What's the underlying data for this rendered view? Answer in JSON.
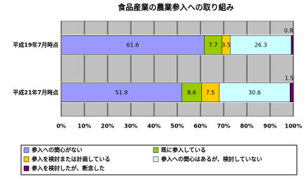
{
  "chart_data": {
    "type": "stacked-bar-horizontal",
    "title": "食品産業の農業参入への取り組み",
    "categories": [
      "平成19年7月時点",
      "平成21年7月時点"
    ],
    "series": [
      {
        "name": "参入への関心がない",
        "color": "#9999ff",
        "values": [
          61.6,
          51.9
        ]
      },
      {
        "name": "既に参入している",
        "color": "#99cc00",
        "values": [
          7.7,
          8.6
        ]
      },
      {
        "name": "参入を検討または計画している",
        "color": "#ffcc00",
        "values": [
          3.5,
          7.5
        ]
      },
      {
        "name": "参入への関心はあるが、検討していない",
        "color": "#ccffff",
        "values": [
          26.3,
          30.6
        ]
      },
      {
        "name": "参入を検討したが、断念した",
        "color": "#660066",
        "values": [
          0.8,
          1.5
        ]
      }
    ],
    "xlim": [
      0,
      100
    ],
    "xticks": [
      {
        "value": 0,
        "label": "0%"
      },
      {
        "value": 10,
        "label": "10%"
      },
      {
        "value": 20,
        "label": "20%"
      },
      {
        "value": 30,
        "label": "30%"
      },
      {
        "value": 40,
        "label": "40%"
      },
      {
        "value": 50,
        "label": "50%"
      },
      {
        "value": 60,
        "label": "60%"
      },
      {
        "value": 70,
        "label": "70%"
      },
      {
        "value": 80,
        "label": "80%"
      },
      {
        "value": 90,
        "label": "90%"
      },
      {
        "value": 100,
        "label": "100%"
      }
    ],
    "grid": true
  }
}
